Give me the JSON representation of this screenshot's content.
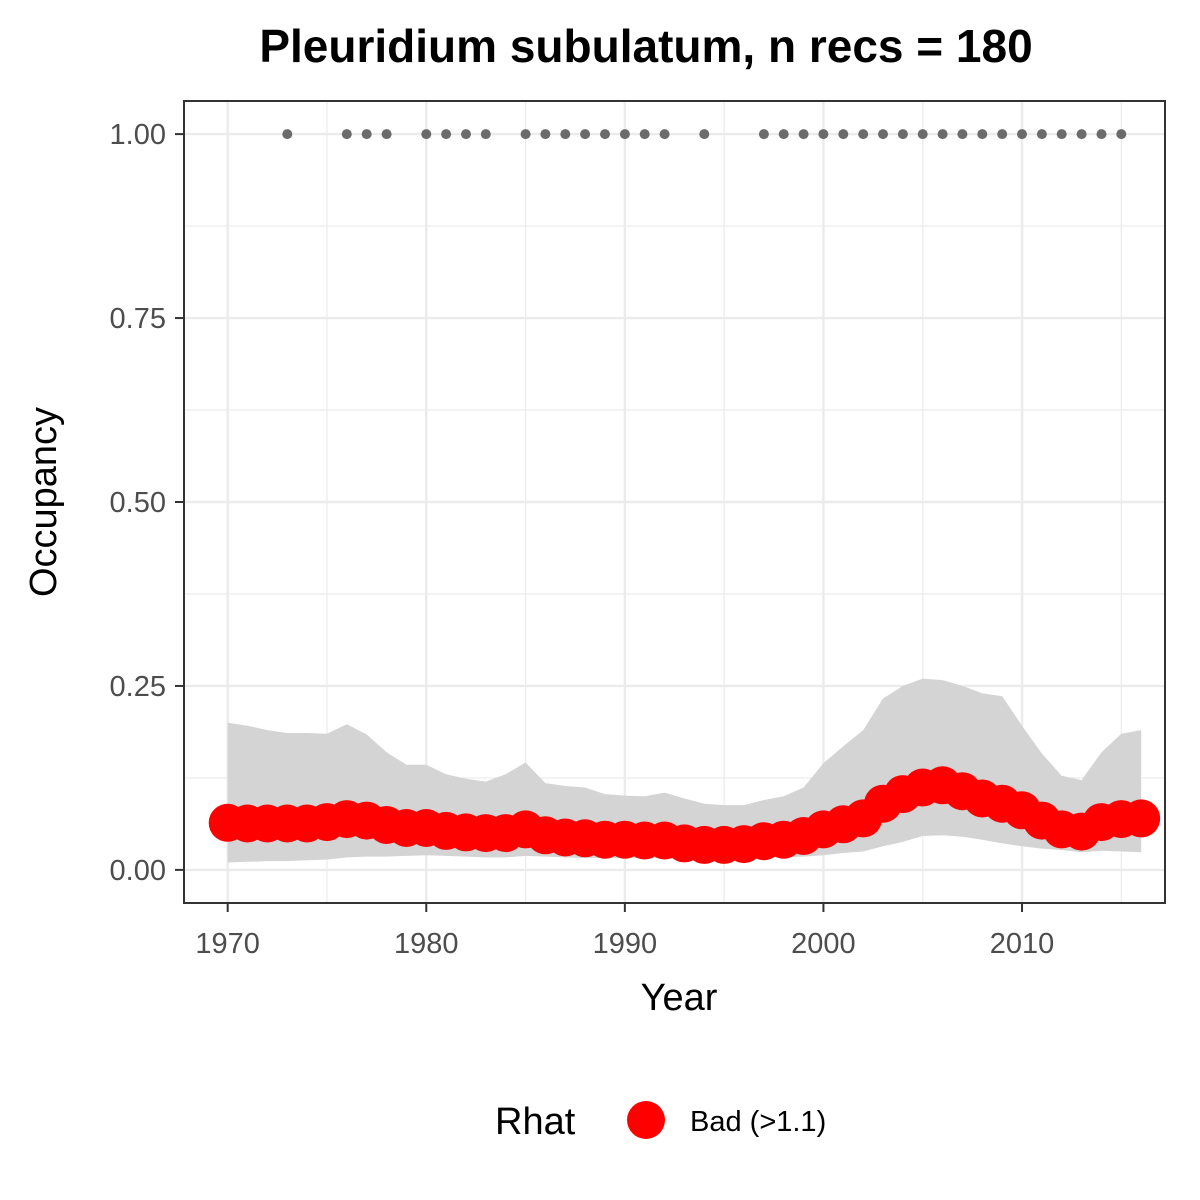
{
  "chart_data": {
    "type": "line",
    "title": "Pleuridium subulatum, n recs = 180",
    "xlabel": "Year",
    "ylabel": "Occupancy",
    "xlim": [
      1967.8,
      2017.2
    ],
    "ylim": [
      -0.045,
      1.045
    ],
    "x_ticks": [
      1970,
      1980,
      1990,
      2000,
      2010
    ],
    "x_tick_labels": [
      "1970",
      "1980",
      "1990",
      "2000",
      "2010"
    ],
    "y_ticks": [
      0,
      0.25,
      0.5,
      0.75,
      1.0
    ],
    "y_tick_labels": [
      "0.00",
      "0.25",
      "0.50",
      "0.75",
      "1.00"
    ],
    "grid": true,
    "legend": {
      "position": "bottom",
      "title": "Rhat",
      "entries": [
        {
          "label": "Bad (>1.1)",
          "color": "#ff0000"
        }
      ]
    },
    "colors": {
      "occupancy": "#ff0000",
      "ribbon": "#d4d4d4",
      "records": "#6b6b6b",
      "grid": "#ebebeb",
      "panel_border": "#333333"
    },
    "series": [
      {
        "x": [
          1970,
          1971,
          1972,
          1973,
          1974,
          1975,
          1976,
          1977,
          1978,
          1979,
          1980,
          1981,
          1982,
          1983,
          1984,
          1985,
          1986,
          1987,
          1988,
          1989,
          1990,
          1991,
          1992,
          1993,
          1994,
          1995,
          1996,
          1997,
          1998,
          1999,
          2000,
          2001,
          2002,
          2003,
          2004,
          2005,
          2006,
          2007,
          2008,
          2009,
          2010,
          2011,
          2012,
          2013,
          2014,
          2015,
          2016
        ],
        "values": [
          0.064,
          0.063,
          0.063,
          0.063,
          0.063,
          0.065,
          0.069,
          0.067,
          0.061,
          0.057,
          0.057,
          0.053,
          0.051,
          0.05,
          0.05,
          0.055,
          0.047,
          0.044,
          0.043,
          0.041,
          0.041,
          0.04,
          0.04,
          0.036,
          0.034,
          0.034,
          0.035,
          0.039,
          0.041,
          0.046,
          0.055,
          0.062,
          0.07,
          0.09,
          0.103,
          0.112,
          0.115,
          0.107,
          0.097,
          0.09,
          0.081,
          0.067,
          0.055,
          0.052,
          0.065,
          0.069,
          0.07
        ],
        "lower": [
          0.01,
          0.011,
          0.012,
          0.012,
          0.013,
          0.014,
          0.017,
          0.018,
          0.018,
          0.019,
          0.02,
          0.019,
          0.018,
          0.017,
          0.017,
          0.019,
          0.018,
          0.017,
          0.016,
          0.016,
          0.016,
          0.016,
          0.016,
          0.015,
          0.014,
          0.014,
          0.014,
          0.016,
          0.017,
          0.018,
          0.02,
          0.023,
          0.025,
          0.032,
          0.038,
          0.046,
          0.047,
          0.045,
          0.041,
          0.036,
          0.032,
          0.029,
          0.027,
          0.024,
          0.026,
          0.025,
          0.024
        ],
        "upper": [
          0.2,
          0.196,
          0.19,
          0.186,
          0.186,
          0.185,
          0.198,
          0.184,
          0.16,
          0.143,
          0.143,
          0.13,
          0.124,
          0.12,
          0.13,
          0.146,
          0.118,
          0.114,
          0.112,
          0.103,
          0.101,
          0.1,
          0.105,
          0.097,
          0.09,
          0.088,
          0.088,
          0.095,
          0.1,
          0.112,
          0.145,
          0.168,
          0.19,
          0.233,
          0.25,
          0.26,
          0.258,
          0.25,
          0.24,
          0.236,
          0.196,
          0.158,
          0.128,
          0.122,
          0.16,
          0.185,
          0.19
        ]
      }
    ],
    "records": {
      "y": 1.0,
      "x": [
        1973,
        1976,
        1977,
        1978,
        1980,
        1981,
        1982,
        1983,
        1985,
        1986,
        1987,
        1988,
        1989,
        1990,
        1991,
        1992,
        1994,
        1997,
        1998,
        1999,
        2000,
        2001,
        2002,
        2003,
        2004,
        2005,
        2006,
        2007,
        2008,
        2009,
        2010,
        2011,
        2012,
        2013,
        2014,
        2015
      ]
    }
  }
}
